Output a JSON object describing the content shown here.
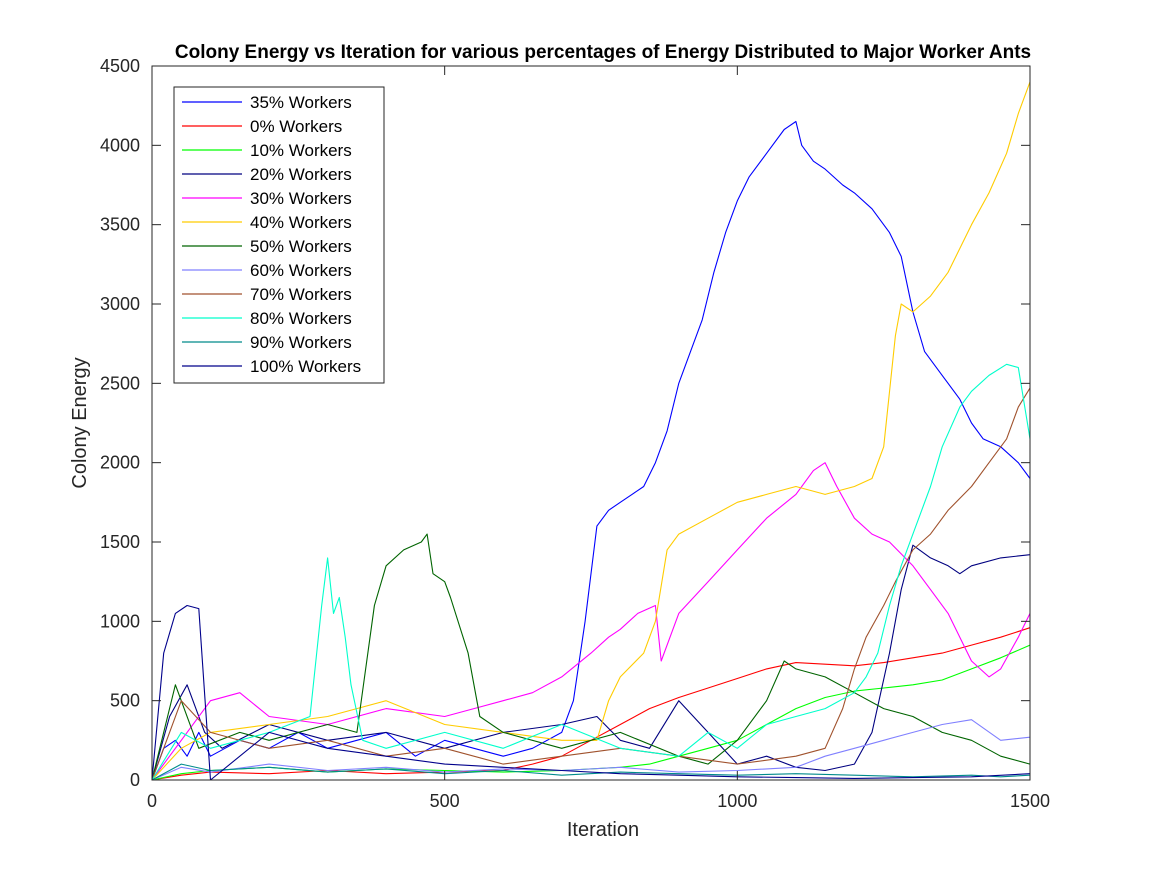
{
  "chart_data": {
    "type": "line",
    "title": "Colony Energy vs Iteration for various percentages of Energy Distributed to Major Worker Ants",
    "xlabel": "Iteration",
    "ylabel": "Colony Energy",
    "xlim": [
      0,
      1500
    ],
    "ylim": [
      0,
      4500
    ],
    "xticks": [
      0,
      500,
      1000,
      1500
    ],
    "yticks": [
      0,
      500,
      1000,
      1500,
      2000,
      2500,
      3000,
      3500,
      4000,
      4500
    ],
    "grid": false,
    "legend_position": "top-left",
    "series": [
      {
        "name": "35% Workers",
        "color": "#0000ff",
        "x": [
          0,
          20,
          40,
          60,
          80,
          100,
          150,
          200,
          250,
          300,
          350,
          400,
          450,
          500,
          550,
          600,
          650,
          700,
          720,
          740,
          760,
          780,
          800,
          820,
          840,
          860,
          880,
          900,
          920,
          940,
          960,
          980,
          1000,
          1020,
          1050,
          1080,
          1100,
          1110,
          1130,
          1150,
          1180,
          1200,
          1230,
          1260,
          1280,
          1300,
          1320,
          1350,
          1380,
          1400,
          1420,
          1450,
          1480,
          1500
        ],
        "values": [
          0,
          200,
          250,
          150,
          300,
          150,
          250,
          200,
          300,
          200,
          250,
          300,
          150,
          250,
          200,
          150,
          200,
          300,
          500,
          1000,
          1600,
          1700,
          1750,
          1800,
          1850,
          2000,
          2200,
          2500,
          2700,
          2900,
          3200,
          3450,
          3650,
          3800,
          3950,
          4100,
          4150,
          4000,
          3900,
          3850,
          3750,
          3700,
          3600,
          3450,
          3300,
          2950,
          2700,
          2550,
          2400,
          2250,
          2150,
          2100,
          2000,
          1900
        ]
      },
      {
        "name": "0% Workers",
        "color": "#ff0000",
        "x": [
          0,
          50,
          100,
          200,
          300,
          400,
          500,
          600,
          650,
          700,
          750,
          800,
          850,
          900,
          950,
          1000,
          1050,
          1100,
          1150,
          1200,
          1250,
          1300,
          1350,
          1400,
          1450,
          1500
        ],
        "values": [
          0,
          30,
          50,
          40,
          60,
          40,
          50,
          60,
          100,
          150,
          250,
          350,
          450,
          520,
          580,
          640,
          700,
          740,
          730,
          720,
          740,
          770,
          800,
          850,
          900,
          960
        ]
      },
      {
        "name": "10% Workers",
        "color": "#00ff00",
        "x": [
          0,
          50,
          100,
          200,
          300,
          400,
          500,
          600,
          700,
          800,
          850,
          900,
          950,
          1000,
          1050,
          1100,
          1150,
          1200,
          1250,
          1300,
          1350,
          1400,
          1450,
          1500
        ],
        "values": [
          0,
          40,
          60,
          80,
          50,
          70,
          60,
          50,
          60,
          80,
          100,
          150,
          200,
          250,
          350,
          450,
          520,
          560,
          580,
          600,
          630,
          700,
          770,
          850
        ]
      },
      {
        "name": "20% Workers",
        "color": "#000080",
        "x": [
          0,
          30,
          60,
          90,
          120,
          200,
          300,
          400,
          500,
          600,
          700,
          760,
          800,
          850,
          900,
          950,
          1000,
          1050,
          1100,
          1150,
          1200,
          1230,
          1260,
          1280,
          1300,
          1330,
          1360,
          1380,
          1400,
          1450,
          1500
        ],
        "values": [
          0,
          400,
          600,
          300,
          200,
          350,
          250,
          300,
          200,
          300,
          350,
          400,
          250,
          200,
          500,
          300,
          100,
          150,
          80,
          60,
          100,
          300,
          800,
          1200,
          1480,
          1400,
          1350,
          1300,
          1350,
          1400,
          1420
        ]
      },
      {
        "name": "30% Workers",
        "color": "#ff00ff",
        "x": [
          0,
          60,
          100,
          150,
          200,
          300,
          400,
          500,
          550,
          600,
          650,
          700,
          750,
          780,
          800,
          830,
          860,
          870,
          900,
          950,
          1000,
          1050,
          1100,
          1130,
          1150,
          1170,
          1200,
          1230,
          1260,
          1300,
          1330,
          1360,
          1380,
          1400,
          1430,
          1450,
          1480,
          1500
        ],
        "values": [
          0,
          300,
          500,
          550,
          400,
          350,
          450,
          400,
          450,
          500,
          550,
          650,
          800,
          900,
          950,
          1050,
          1100,
          750,
          1050,
          1250,
          1450,
          1650,
          1800,
          1950,
          2000,
          1850,
          1650,
          1550,
          1500,
          1350,
          1200,
          1050,
          900,
          750,
          650,
          700,
          900,
          1050
        ]
      },
      {
        "name": "40% Workers",
        "color": "#ffcc00",
        "x": [
          0,
          50,
          100,
          200,
          300,
          400,
          500,
          600,
          700,
          760,
          780,
          800,
          840,
          860,
          880,
          900,
          950,
          1000,
          1050,
          1100,
          1150,
          1200,
          1230,
          1250,
          1270,
          1280,
          1300,
          1330,
          1360,
          1400,
          1430,
          1460,
          1480,
          1500
        ],
        "values": [
          0,
          200,
          300,
          350,
          400,
          500,
          350,
          300,
          250,
          250,
          500,
          650,
          800,
          1000,
          1450,
          1550,
          1650,
          1750,
          1800,
          1850,
          1800,
          1850,
          1900,
          2100,
          2800,
          3000,
          2950,
          3050,
          3200,
          3500,
          3700,
          3950,
          4200,
          4400
        ]
      },
      {
        "name": "50% Workers",
        "color": "#006400",
        "x": [
          0,
          40,
          80,
          150,
          200,
          300,
          350,
          380,
          400,
          430,
          460,
          470,
          480,
          500,
          510,
          540,
          560,
          600,
          700,
          800,
          900,
          950,
          1000,
          1050,
          1080,
          1100,
          1150,
          1200,
          1250,
          1300,
          1350,
          1400,
          1450,
          1500
        ],
        "values": [
          0,
          600,
          200,
          300,
          250,
          350,
          300,
          1100,
          1350,
          1450,
          1500,
          1550,
          1300,
          1250,
          1150,
          800,
          400,
          300,
          200,
          300,
          150,
          100,
          250,
          500,
          750,
          700,
          650,
          550,
          450,
          400,
          300,
          250,
          150,
          100
        ]
      },
      {
        "name": "60% Workers",
        "color": "#8080ff",
        "x": [
          0,
          50,
          100,
          200,
          300,
          400,
          500,
          600,
          700,
          800,
          900,
          1000,
          1100,
          1150,
          1200,
          1250,
          1300,
          1350,
          1400,
          1450,
          1500
        ],
        "values": [
          0,
          80,
          50,
          100,
          60,
          80,
          50,
          70,
          60,
          80,
          50,
          60,
          80,
          150,
          200,
          250,
          300,
          350,
          380,
          250,
          270
        ]
      },
      {
        "name": "70% Workers",
        "color": "#a0522d",
        "x": [
          0,
          50,
          100,
          200,
          300,
          400,
          500,
          600,
          700,
          800,
          900,
          1000,
          1100,
          1150,
          1180,
          1200,
          1220,
          1250,
          1270,
          1300,
          1330,
          1360,
          1400,
          1430,
          1460,
          1480,
          1500
        ],
        "values": [
          0,
          500,
          300,
          200,
          250,
          150,
          200,
          100,
          150,
          200,
          150,
          100,
          150,
          200,
          450,
          700,
          900,
          1100,
          1250,
          1450,
          1550,
          1700,
          1850,
          2000,
          2150,
          2350,
          2470
        ]
      },
      {
        "name": "80% Workers",
        "color": "#00ffcc",
        "x": [
          0,
          50,
          100,
          200,
          270,
          290,
          300,
          310,
          320,
          330,
          340,
          360,
          400,
          500,
          600,
          700,
          800,
          900,
          950,
          1000,
          1050,
          1100,
          1150,
          1200,
          1220,
          1240,
          1260,
          1280,
          1300,
          1330,
          1350,
          1380,
          1400,
          1430,
          1460,
          1480,
          1500
        ],
        "values": [
          0,
          300,
          200,
          300,
          400,
          1100,
          1400,
          1050,
          1150,
          900,
          600,
          250,
          200,
          300,
          200,
          350,
          200,
          150,
          300,
          200,
          350,
          400,
          450,
          550,
          650,
          800,
          1100,
          1350,
          1550,
          1850,
          2100,
          2350,
          2450,
          2550,
          2620,
          2600,
          2150
        ]
      },
      {
        "name": "90% Workers",
        "color": "#008b8b",
        "x": [
          0,
          50,
          100,
          200,
          300,
          400,
          500,
          600,
          700,
          800,
          900,
          1000,
          1100,
          1200,
          1300,
          1400,
          1450,
          1500
        ],
        "values": [
          0,
          100,
          60,
          80,
          50,
          70,
          40,
          60,
          30,
          50,
          40,
          30,
          40,
          30,
          20,
          30,
          20,
          30
        ]
      },
      {
        "name": "100% Workers",
        "color": "#00008b",
        "x": [
          0,
          20,
          40,
          60,
          80,
          100,
          200,
          300,
          400,
          500,
          600,
          700,
          800,
          900,
          1000,
          1100,
          1200,
          1300,
          1400,
          1500
        ],
        "values": [
          0,
          800,
          1050,
          1100,
          1080,
          0,
          300,
          200,
          150,
          100,
          80,
          60,
          40,
          30,
          20,
          15,
          10,
          15,
          20,
          40
        ]
      }
    ]
  }
}
